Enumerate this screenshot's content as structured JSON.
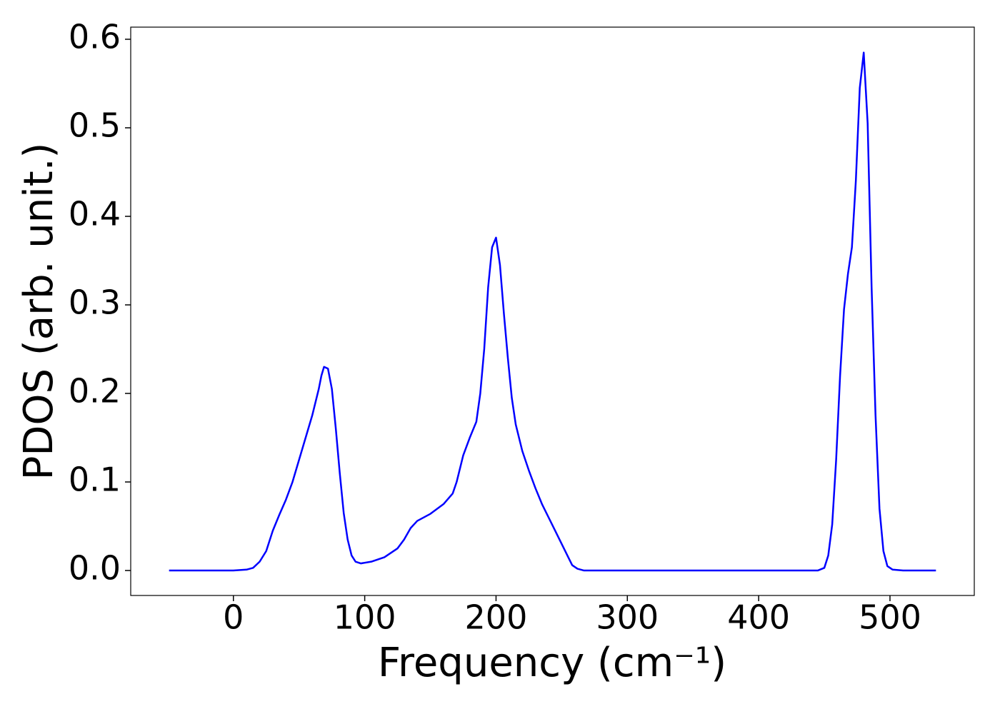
{
  "chart_data": {
    "type": "line",
    "xlabel": "Frequency (cm⁻¹)",
    "ylabel": "PDOS (arb. unit.)",
    "x": [
      -49,
      -30,
      -10,
      0,
      10,
      15,
      20,
      25,
      30,
      35,
      40,
      45,
      50,
      55,
      60,
      65,
      67,
      69,
      72,
      75,
      78,
      81,
      84,
      87,
      90,
      93,
      97,
      105,
      115,
      125,
      130,
      135,
      140,
      150,
      160,
      167,
      170,
      175,
      180,
      185,
      188,
      191,
      194,
      197,
      200,
      203,
      206,
      209,
      212,
      215,
      220,
      225,
      230,
      235,
      240,
      245,
      250,
      255,
      258,
      262,
      267,
      300,
      350,
      400,
      445,
      450,
      453,
      456,
      459,
      462,
      465,
      468,
      471,
      474,
      477,
      480,
      483,
      486,
      489,
      492,
      495,
      498,
      502,
      510,
      535
    ],
    "series": [
      {
        "color": "#0000ff",
        "values": [
          0,
          0,
          0,
          0,
          0.001,
          0.003,
          0.01,
          0.022,
          0.045,
          0.063,
          0.08,
          0.1,
          0.125,
          0.15,
          0.175,
          0.205,
          0.22,
          0.23,
          0.228,
          0.205,
          0.16,
          0.11,
          0.065,
          0.035,
          0.017,
          0.01,
          0.008,
          0.01,
          0.015,
          0.025,
          0.035,
          0.048,
          0.056,
          0.064,
          0.075,
          0.087,
          0.1,
          0.13,
          0.15,
          0.168,
          0.2,
          0.25,
          0.32,
          0.365,
          0.376,
          0.345,
          0.29,
          0.24,
          0.195,
          0.165,
          0.135,
          0.113,
          0.093,
          0.075,
          0.06,
          0.045,
          0.03,
          0.015,
          0.006,
          0.002,
          0,
          0,
          0,
          0,
          0,
          0.003,
          0.017,
          0.052,
          0.125,
          0.22,
          0.295,
          0.335,
          0.365,
          0.44,
          0.545,
          0.585,
          0.505,
          0.32,
          0.175,
          0.07,
          0.022,
          0.005,
          0.001,
          0,
          0
        ]
      }
    ],
    "xlim": [
      -78.2,
      564.2
    ],
    "ylim": [
      -0.0282,
      0.6137
    ],
    "xticks": [
      0,
      100,
      200,
      300,
      400,
      500
    ],
    "yticks": [
      {
        "value": 0,
        "label": "0.0"
      },
      0.1,
      0.2,
      0.3,
      0.4,
      0.5,
      0.6
    ]
  }
}
